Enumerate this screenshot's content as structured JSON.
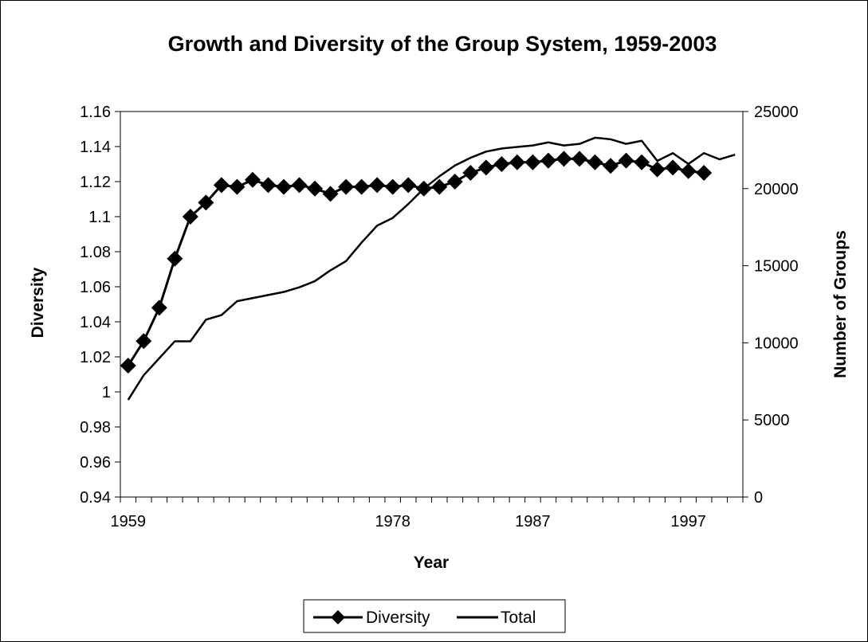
{
  "chart_data": {
    "type": "line",
    "title": "Growth and Diversity of the Group System, 1959-2003",
    "xlabel": "Year",
    "ylabel_left": "Diversity",
    "ylabel_right": "Number of Groups",
    "x_tick_labels": [
      "1959",
      "1978",
      "1987",
      "1997"
    ],
    "y_left_ticks": [
      "0.94",
      "0.96",
      "0.98",
      "1",
      "1.02",
      "1.04",
      "1.06",
      "1.08",
      "1.1",
      "1.12",
      "1.14",
      "1.16"
    ],
    "y_right_ticks": [
      "0",
      "5000",
      "10000",
      "15000",
      "20000",
      "25000"
    ],
    "ylim_left": [
      0.94,
      1.16
    ],
    "ylim_right": [
      0,
      25000
    ],
    "legend": {
      "position": "bottom",
      "entries": [
        "Diversity",
        "Total"
      ]
    },
    "grid": false,
    "colors": {
      "line": "#000000",
      "background": "#ffffff"
    },
    "series": [
      {
        "name": "Diversity",
        "axis": "left",
        "marker": "diamond",
        "values": [
          1.015,
          1.029,
          1.048,
          1.076,
          1.1,
          1.108,
          1.118,
          1.117,
          1.121,
          1.118,
          1.117,
          1.118,
          1.116,
          1.113,
          1.117,
          1.117,
          1.118,
          1.117,
          1.118,
          1.116,
          1.117,
          1.12,
          1.125,
          1.128,
          1.13,
          1.131,
          1.131,
          1.132,
          1.133,
          1.133,
          1.131,
          1.129,
          1.132,
          1.131,
          1.127,
          1.128,
          1.126,
          1.125
        ]
      },
      {
        "name": "Total",
        "axis": "right",
        "marker": "none",
        "values": [
          6300,
          7900,
          9000,
          10100,
          10100,
          11500,
          11800,
          12700,
          12900,
          13100,
          13300,
          13600,
          14000,
          14700,
          15300,
          16500,
          17600,
          18100,
          19000,
          20000,
          20800,
          21500,
          22000,
          22400,
          22600,
          22700,
          22800,
          23000,
          22800,
          22900,
          23300,
          23200,
          22900,
          23100,
          21800,
          22300,
          21600,
          22300,
          21900,
          22200
        ]
      }
    ]
  }
}
